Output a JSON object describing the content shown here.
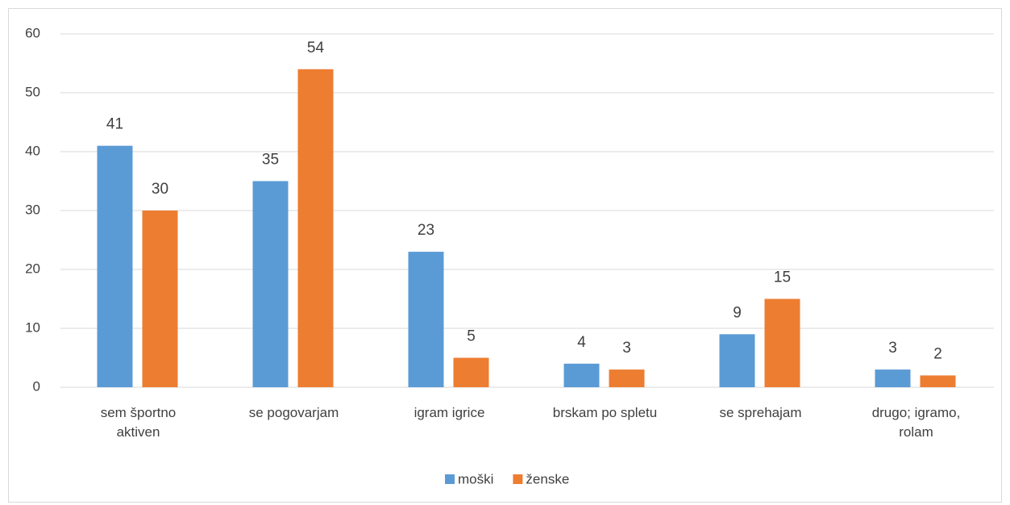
{
  "chart_data": {
    "type": "bar",
    "categories": [
      "sem športno aktiven",
      "se pogovarjam",
      "igram igrice",
      "brskam po spletu",
      "se sprehajam",
      "drugo; igramo, rolam"
    ],
    "series": [
      {
        "name": "moški",
        "color": "#5b9bd5",
        "values": [
          41,
          35,
          23,
          4,
          9,
          3
        ]
      },
      {
        "name": "ženske",
        "color": "#ed7d31",
        "values": [
          30,
          54,
          5,
          3,
          15,
          2
        ]
      }
    ],
    "ylim": [
      0,
      60
    ],
    "yticks": [
      0,
      10,
      20,
      30,
      40,
      50,
      60
    ],
    "grid": true,
    "legend": "bottom"
  }
}
